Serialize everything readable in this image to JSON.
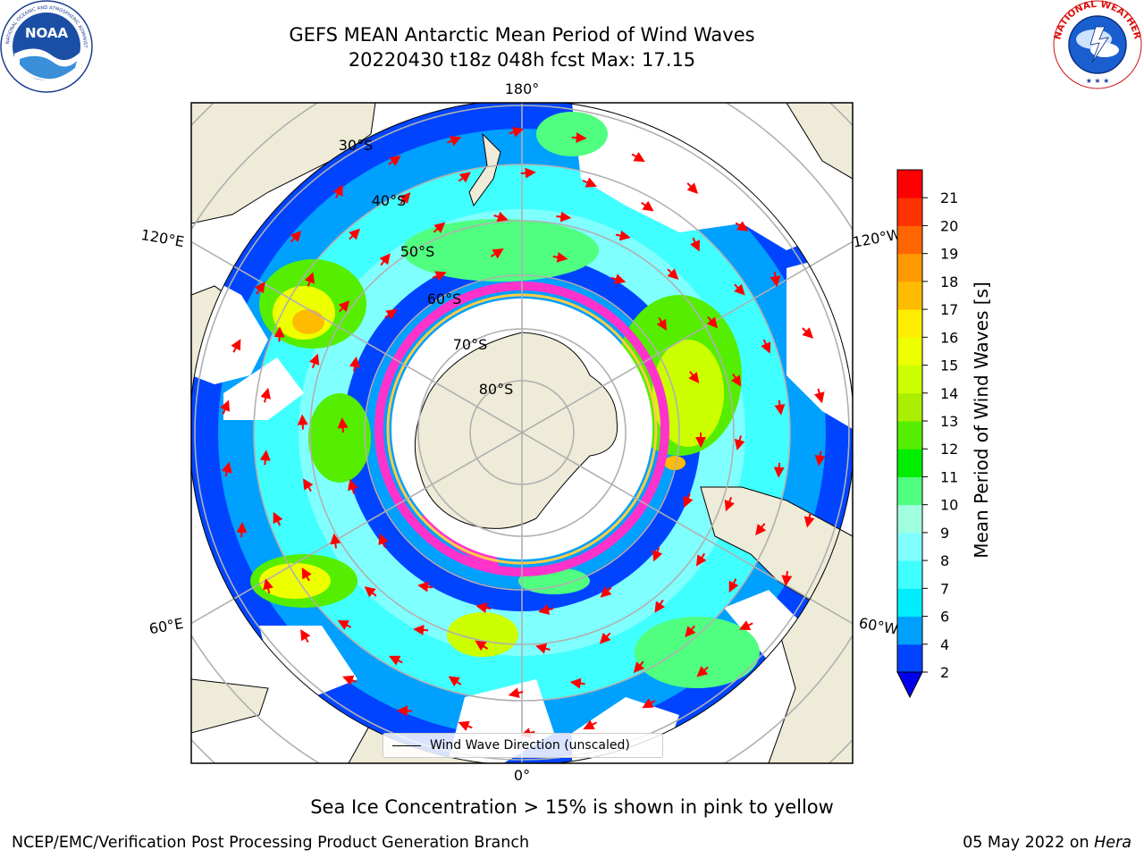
{
  "header": {
    "title_line1": "GEFS MEAN Antarctic Mean Period of Wind Waves",
    "title_line2": "20220430 t18z 048h fcst   Max: 17.15"
  },
  "logos": {
    "left": "noaa-logo",
    "left_text": "NOAA",
    "left_ring_text": "NATIONAL OCEANIC AND ATMOSPHERIC ADMINISTRATION · U.S. DEPARTMENT OF COMMERCE",
    "right": "nws-logo",
    "right_ring_text": "NATIONAL WEATHER SERVICE"
  },
  "map": {
    "projection": "south-polar-stereographic",
    "longitude_labels": {
      "top": "180°",
      "bottom": "0°",
      "left_upper": "120°E",
      "right_upper": "120°W",
      "left_lower": "60°E",
      "right_lower": "60°W"
    },
    "latitude_labels": [
      "30°S",
      "40°S",
      "50°S",
      "60°S",
      "70°S",
      "80°S"
    ],
    "vector_color": "#ff0000",
    "land_color": "#efebd9",
    "ice_colors": [
      "#ff33cc",
      "#ffcc44"
    ]
  },
  "legend": {
    "line_label": "Wind Wave Direction (unscaled)"
  },
  "colorbar": {
    "label": "Mean Period of Wind Waves [s]",
    "ticks": [
      "2",
      "4",
      "6",
      "7",
      "8",
      "9",
      "10",
      "11",
      "12",
      "13",
      "14",
      "15",
      "16",
      "17",
      "18",
      "19",
      "20",
      "21"
    ],
    "colors": [
      "#0044ff",
      "#00a0ff",
      "#00eeff",
      "#40ffff",
      "#80ffff",
      "#a0ffe0",
      "#50ff80",
      "#00ee00",
      "#55ee00",
      "#aaee00",
      "#ccff00",
      "#eeff00",
      "#ffee00",
      "#ffbb00",
      "#ff9900",
      "#ff6600",
      "#ff3300",
      "#ff0000"
    ],
    "under_color": "#0000ee"
  },
  "caption": "Sea Ice Concentration > 15% is shown in pink to yellow",
  "footer": {
    "left": "NCEP/EMC/Verification Post Processing Product Generation Branch",
    "right_prefix": "05 May 2022 on ",
    "right_host": "Hera"
  }
}
